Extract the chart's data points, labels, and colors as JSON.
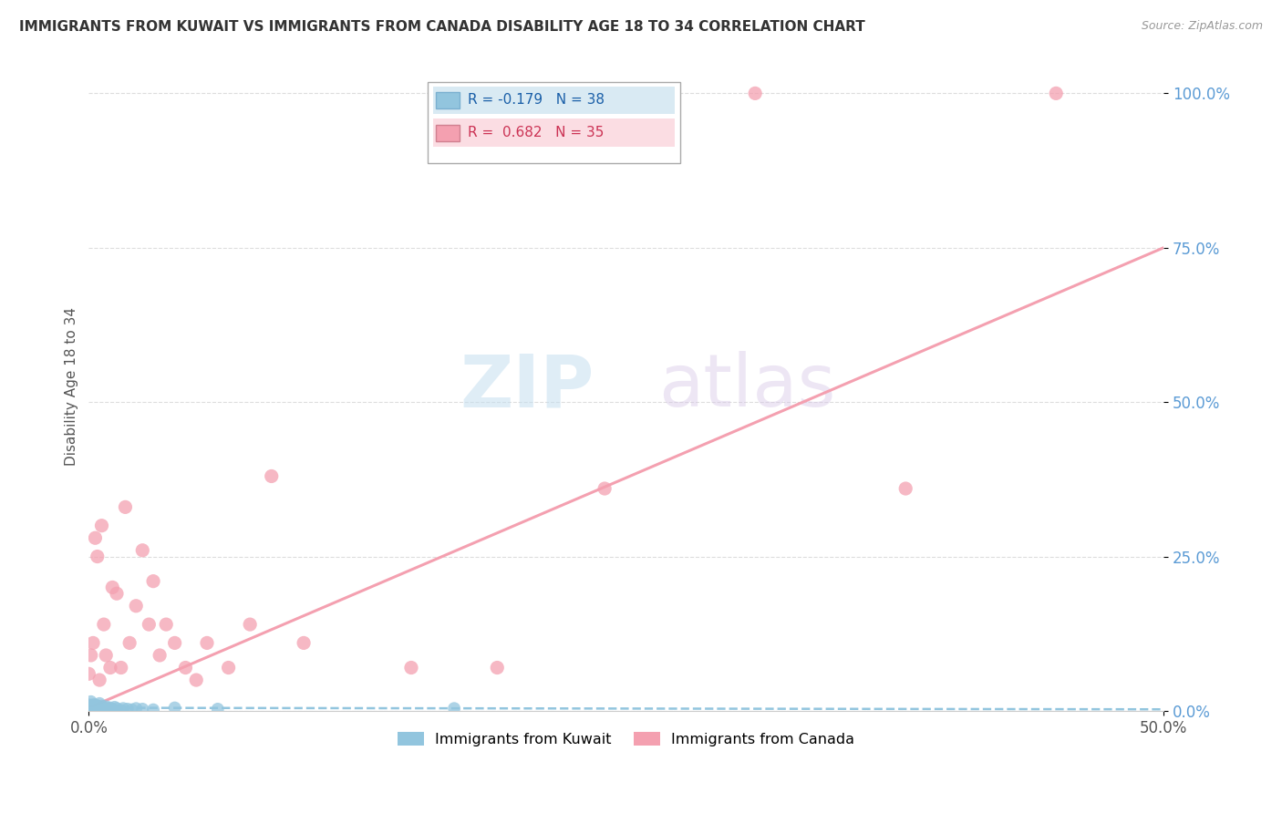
{
  "title": "IMMIGRANTS FROM KUWAIT VS IMMIGRANTS FROM CANADA DISABILITY AGE 18 TO 34 CORRELATION CHART",
  "source": "Source: ZipAtlas.com",
  "ylabel": "Disability Age 18 to 34",
  "xlim": [
    0.0,
    0.5
  ],
  "ylim": [
    0.0,
    1.05
  ],
  "xtick_labels": [
    "0.0%",
    "50.0%"
  ],
  "xtick_positions": [
    0.0,
    0.5
  ],
  "ytick_labels": [
    "0.0%",
    "25.0%",
    "50.0%",
    "75.0%",
    "100.0%"
  ],
  "ytick_positions": [
    0.0,
    0.25,
    0.5,
    0.75,
    1.0
  ],
  "kuwait_color": "#92c5de",
  "canada_color": "#f4a0b0",
  "kuwait_R": -0.179,
  "kuwait_N": 38,
  "canada_R": 0.682,
  "canada_N": 35,
  "watermark_zip": "ZIP",
  "watermark_atlas": "atlas",
  "legend_label_kuwait": "Immigrants from Kuwait",
  "legend_label_canada": "Immigrants from Canada",
  "kuwait_scatter_x": [
    0.0,
    0.0,
    0.001,
    0.001,
    0.001,
    0.002,
    0.002,
    0.002,
    0.003,
    0.003,
    0.003,
    0.004,
    0.004,
    0.005,
    0.005,
    0.005,
    0.006,
    0.006,
    0.007,
    0.007,
    0.008,
    0.008,
    0.009,
    0.01,
    0.01,
    0.011,
    0.012,
    0.013,
    0.015,
    0.016,
    0.018,
    0.02,
    0.022,
    0.025,
    0.03,
    0.04,
    0.06,
    0.17
  ],
  "kuwait_scatter_y": [
    0.0,
    0.01,
    0.0,
    0.005,
    0.015,
    0.0,
    0.005,
    0.01,
    0.0,
    0.005,
    0.01,
    0.0,
    0.008,
    0.002,
    0.006,
    0.012,
    0.003,
    0.008,
    0.0,
    0.005,
    0.002,
    0.007,
    0.004,
    0.0,
    0.005,
    0.003,
    0.006,
    0.004,
    0.001,
    0.004,
    0.003,
    0.002,
    0.004,
    0.003,
    0.002,
    0.005,
    0.003,
    0.004
  ],
  "canada_scatter_x": [
    0.0,
    0.001,
    0.002,
    0.003,
    0.004,
    0.005,
    0.006,
    0.007,
    0.008,
    0.01,
    0.011,
    0.013,
    0.015,
    0.017,
    0.019,
    0.022,
    0.025,
    0.028,
    0.03,
    0.033,
    0.036,
    0.04,
    0.045,
    0.05,
    0.055,
    0.065,
    0.075,
    0.085,
    0.1,
    0.15,
    0.19,
    0.24,
    0.31,
    0.38,
    0.45
  ],
  "canada_scatter_y": [
    0.06,
    0.09,
    0.11,
    0.28,
    0.25,
    0.05,
    0.3,
    0.14,
    0.09,
    0.07,
    0.2,
    0.19,
    0.07,
    0.33,
    0.11,
    0.17,
    0.26,
    0.14,
    0.21,
    0.09,
    0.14,
    0.11,
    0.07,
    0.05,
    0.11,
    0.07,
    0.14,
    0.38,
    0.11,
    0.07,
    0.07,
    0.36,
    1.0,
    0.36,
    1.0
  ],
  "background_color": "#ffffff",
  "grid_color": "#dddddd",
  "canada_line_intercept": 0.005,
  "canada_line_slope": 1.49,
  "kuwait_line_intercept": 0.005,
  "kuwait_line_slope": -0.005
}
